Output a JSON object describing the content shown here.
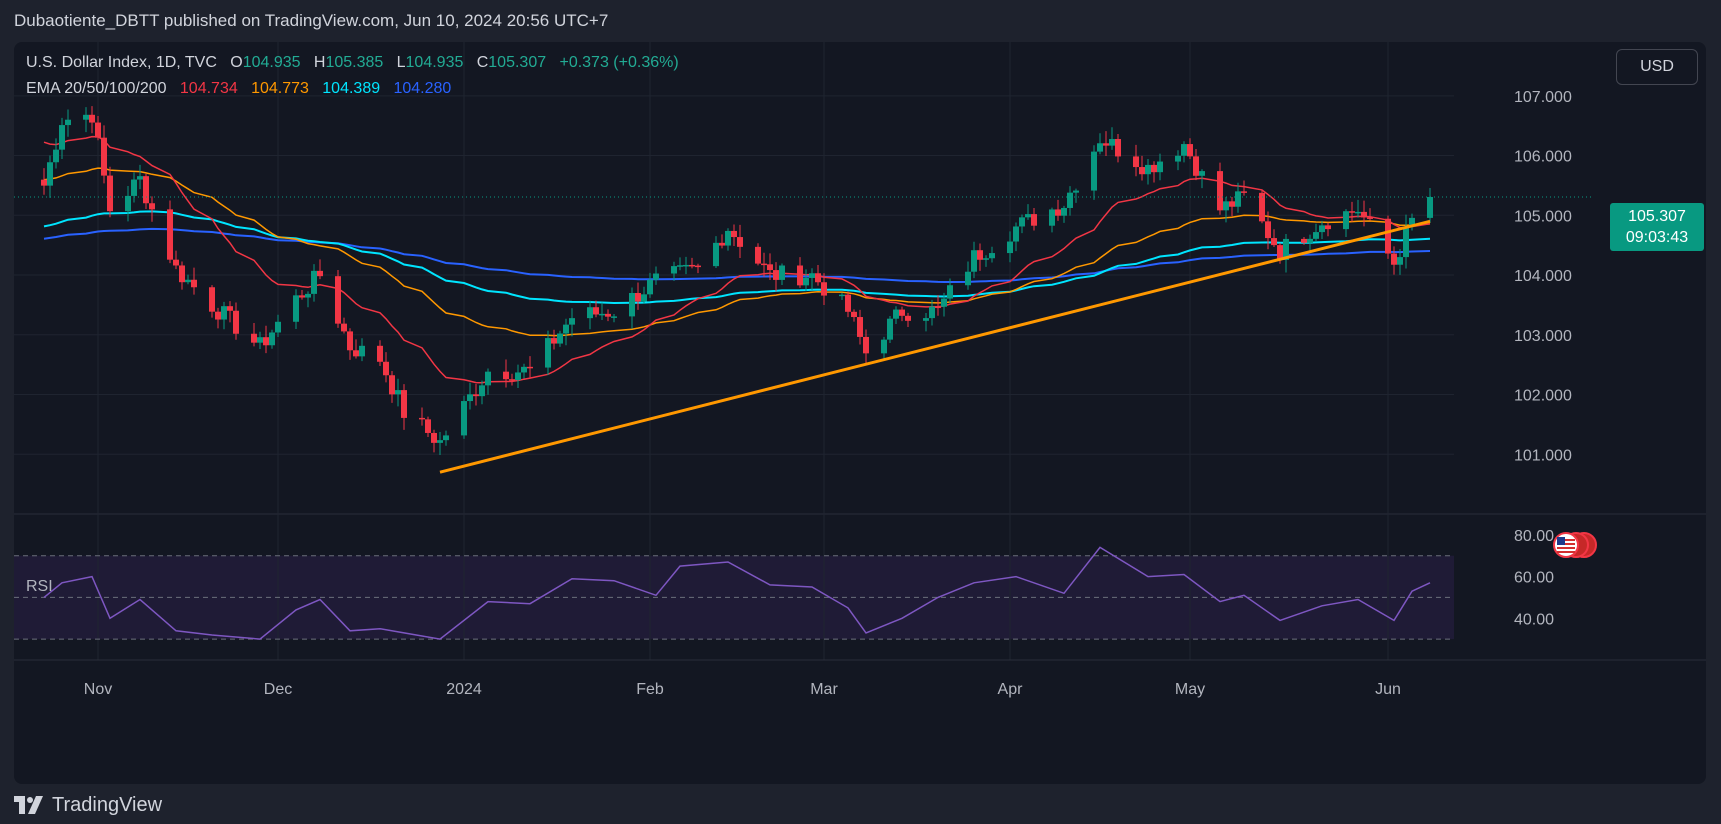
{
  "header": {
    "publisher": "Dubaotiente_DBTT published on TradingView.com, Jun 10, 2024 20:56 UTC+7"
  },
  "symbol": {
    "title": "U.S. Dollar Index, 1D, TVC",
    "open_label": "O",
    "open": "104.935",
    "high_label": "H",
    "high": "105.385",
    "low_label": "L",
    "low": "104.935",
    "close_label": "C",
    "close": "105.307",
    "change": "+0.373 (+0.36%)"
  },
  "ema": {
    "label": "EMA 20/50/100/200",
    "v20": "104.734",
    "v50": "104.773",
    "v100": "104.389",
    "v200": "104.280",
    "colors": {
      "ema20": "#f23645",
      "ema50": "#ff9800",
      "ema100": "#00e5ff",
      "ema200": "#2962ff"
    }
  },
  "currency_button": "USD",
  "last_price": {
    "price": "105.307",
    "countdown": "09:03:43"
  },
  "rsi": {
    "label": "RSI",
    "ticks": [
      "80.00",
      "60.00",
      "40.00"
    ],
    "levels": [
      70,
      50,
      30
    ]
  },
  "footer": {
    "brand": "TradingView"
  },
  "icons": {
    "logo": "tradingview-logo-icon",
    "flag": "us-flag-event-icon"
  },
  "colors": {
    "up": "#089981",
    "down": "#f23645",
    "background": "#131722",
    "trendline": "#ff9800",
    "rsi_line": "#7e57c2"
  },
  "chart_data": {
    "type": "candlestick",
    "price_axis_ticks": [
      "107.000",
      "106.000",
      "105.000",
      "104.000",
      "103.000",
      "102.000",
      "101.000"
    ],
    "price_range": [
      100.0,
      107.7
    ],
    "x_labels": [
      {
        "label": "Nov",
        "date": "2023-11-01"
      },
      {
        "label": "Dec",
        "date": "2023-12-01"
      },
      {
        "label": "2024",
        "date": "2024-01-01"
      },
      {
        "label": "Feb",
        "date": "2024-02-01"
      },
      {
        "label": "Mar",
        "date": "2024-03-01"
      },
      {
        "label": "Apr",
        "date": "2024-04-01"
      },
      {
        "label": "May",
        "date": "2024-05-01"
      },
      {
        "label": "Jun",
        "date": "2024-06-03"
      }
    ],
    "closes": [
      {
        "date": "2023-10-23",
        "close": 105.5
      },
      {
        "date": "2023-10-26",
        "close": 106.6
      },
      {
        "date": "2023-10-31",
        "close": 106.7
      },
      {
        "date": "2023-11-03",
        "close": 105.1
      },
      {
        "date": "2023-11-08",
        "close": 105.6
      },
      {
        "date": "2023-11-14",
        "close": 104.1
      },
      {
        "date": "2023-11-20",
        "close": 103.5
      },
      {
        "date": "2023-11-28",
        "close": 102.8
      },
      {
        "date": "2023-12-04",
        "close": 103.6
      },
      {
        "date": "2023-12-08",
        "close": 104.0
      },
      {
        "date": "2023-12-13",
        "close": 102.8
      },
      {
        "date": "2023-12-18",
        "close": 102.6
      },
      {
        "date": "2023-12-22",
        "close": 101.7
      },
      {
        "date": "2023-12-28",
        "close": 101.2
      },
      {
        "date": "2024-01-05",
        "close": 102.4
      },
      {
        "date": "2024-01-12",
        "close": 102.4
      },
      {
        "date": "2024-01-19",
        "close": 103.3
      },
      {
        "date": "2024-01-26",
        "close": 103.4
      },
      {
        "date": "2024-02-02",
        "close": 103.9
      },
      {
        "date": "2024-02-09",
        "close": 104.1
      },
      {
        "date": "2024-02-14",
        "close": 104.8
      },
      {
        "date": "2024-02-21",
        "close": 104.0
      },
      {
        "date": "2024-02-28",
        "close": 104.0
      },
      {
        "date": "2024-03-05",
        "close": 103.4
      },
      {
        "date": "2024-03-08",
        "close": 102.7
      },
      {
        "date": "2024-03-14",
        "close": 103.4
      },
      {
        "date": "2024-03-20",
        "close": 103.4
      },
      {
        "date": "2024-03-26",
        "close": 104.3
      },
      {
        "date": "2024-04-02",
        "close": 104.8
      },
      {
        "date": "2024-04-10",
        "close": 105.2
      },
      {
        "date": "2024-04-16",
        "close": 106.3
      },
      {
        "date": "2024-04-24",
        "close": 105.8
      },
      {
        "date": "2024-04-30",
        "close": 106.2
      },
      {
        "date": "2024-05-06",
        "close": 105.1
      },
      {
        "date": "2024-05-10",
        "close": 105.3
      },
      {
        "date": "2024-05-16",
        "close": 104.4
      },
      {
        "date": "2024-05-23",
        "close": 104.9
      },
      {
        "date": "2024-05-29",
        "close": 105.1
      },
      {
        "date": "2024-06-04",
        "close": 104.2
      },
      {
        "date": "2024-06-07",
        "close": 104.9
      },
      {
        "date": "2024-06-10",
        "close": 105.307
      }
    ],
    "trendline": {
      "from": {
        "date": "2023-12-28",
        "price": 100.7
      },
      "to": {
        "date": "2024-06-10",
        "price": 104.9
      }
    },
    "rsi_values": [
      {
        "date": "2023-10-23",
        "value": 50
      },
      {
        "date": "2023-10-26",
        "value": 57
      },
      {
        "date": "2023-10-31",
        "value": 60
      },
      {
        "date": "2023-11-03",
        "value": 40
      },
      {
        "date": "2023-11-08",
        "value": 49
      },
      {
        "date": "2023-11-14",
        "value": 34
      },
      {
        "date": "2023-11-20",
        "value": 32
      },
      {
        "date": "2023-11-28",
        "value": 30
      },
      {
        "date": "2023-12-04",
        "value": 44
      },
      {
        "date": "2023-12-08",
        "value": 49
      },
      {
        "date": "2023-12-13",
        "value": 34
      },
      {
        "date": "2023-12-18",
        "value": 35
      },
      {
        "date": "2023-12-22",
        "value": 33
      },
      {
        "date": "2023-12-28",
        "value": 30
      },
      {
        "date": "2024-01-05",
        "value": 48
      },
      {
        "date": "2024-01-12",
        "value": 47
      },
      {
        "date": "2024-01-19",
        "value": 59
      },
      {
        "date": "2024-01-26",
        "value": 58
      },
      {
        "date": "2024-02-02",
        "value": 51
      },
      {
        "date": "2024-02-06",
        "value": 65
      },
      {
        "date": "2024-02-14",
        "value": 67
      },
      {
        "date": "2024-02-21",
        "value": 56
      },
      {
        "date": "2024-02-28",
        "value": 55
      },
      {
        "date": "2024-03-05",
        "value": 45
      },
      {
        "date": "2024-03-08",
        "value": 33
      },
      {
        "date": "2024-03-14",
        "value": 40
      },
      {
        "date": "2024-03-20",
        "value": 50
      },
      {
        "date": "2024-03-26",
        "value": 57
      },
      {
        "date": "2024-04-02",
        "value": 60
      },
      {
        "date": "2024-04-10",
        "value": 52
      },
      {
        "date": "2024-04-16",
        "value": 74
      },
      {
        "date": "2024-04-24",
        "value": 60
      },
      {
        "date": "2024-04-30",
        "value": 61
      },
      {
        "date": "2024-05-06",
        "value": 48
      },
      {
        "date": "2024-05-10",
        "value": 51
      },
      {
        "date": "2024-05-16",
        "value": 39
      },
      {
        "date": "2024-05-23",
        "value": 46
      },
      {
        "date": "2024-05-29",
        "value": 49
      },
      {
        "date": "2024-06-04",
        "value": 39
      },
      {
        "date": "2024-06-07",
        "value": 53
      },
      {
        "date": "2024-06-10",
        "value": 57
      }
    ]
  }
}
